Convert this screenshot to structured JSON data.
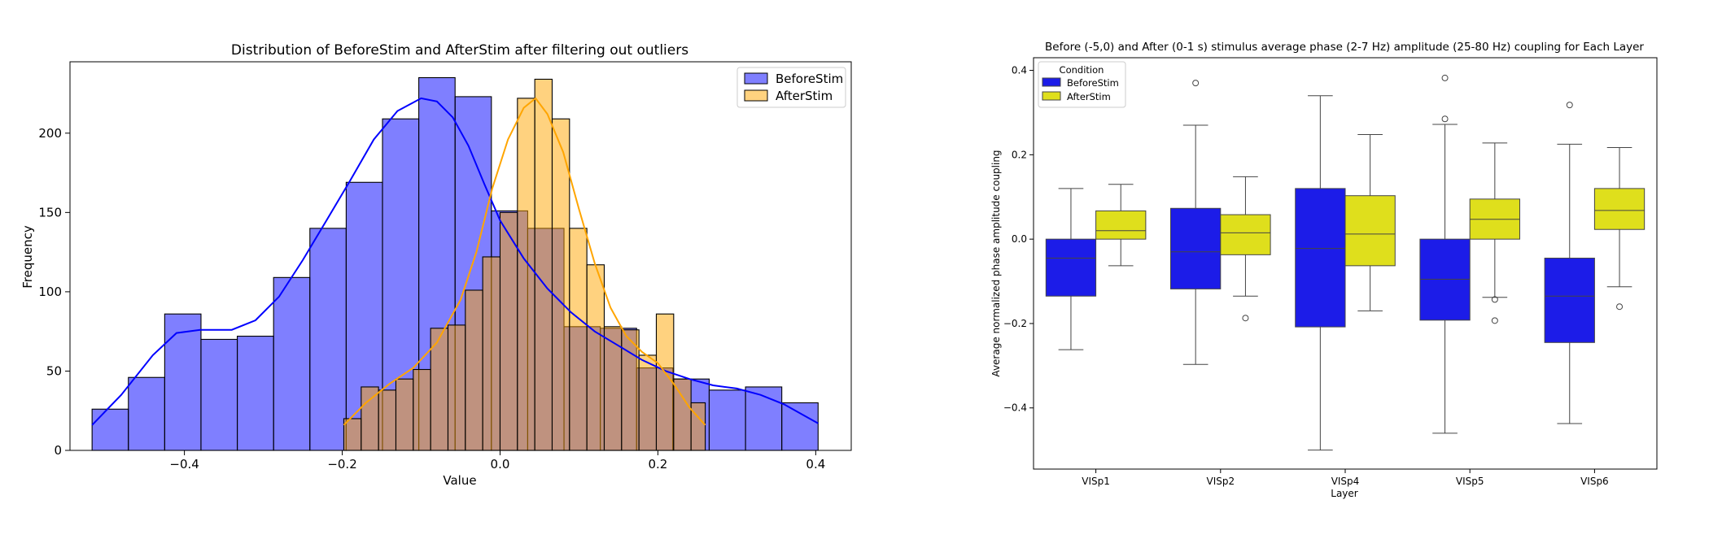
{
  "chart_data": [
    {
      "type": "histogram",
      "title": "Distribution of BeforeStim and AfterStim  after filtering out outliers",
      "xlabel": "Value",
      "ylabel": "Frequency",
      "xlim": [
        -0.545,
        0.445
      ],
      "ylim": [
        0,
        245
      ],
      "xticks": [
        -0.4,
        -0.2,
        0.0,
        0.2,
        0.4
      ],
      "xtick_labels": [
        "−0.4",
        "−0.2",
        "0.0",
        "0.2",
        "0.4"
      ],
      "yticks": [
        0,
        50,
        100,
        150,
        200
      ],
      "yticks_labels": [
        "0",
        "50",
        "100",
        "150",
        "200"
      ],
      "legend_position": "top-right",
      "series": [
        {
          "name": "BeforeStim",
          "color": "#0000ff",
          "bins": [
            {
              "x0": -0.517,
              "x1": -0.471,
              "count": 26
            },
            {
              "x0": -0.471,
              "x1": -0.425,
              "count": 46
            },
            {
              "x0": -0.425,
              "x1": -0.379,
              "count": 86
            },
            {
              "x0": -0.379,
              "x1": -0.333,
              "count": 70
            },
            {
              "x0": -0.333,
              "x1": -0.287,
              "count": 72
            },
            {
              "x0": -0.287,
              "x1": -0.241,
              "count": 109
            },
            {
              "x0": -0.241,
              "x1": -0.195,
              "count": 140
            },
            {
              "x0": -0.195,
              "x1": -0.149,
              "count": 169
            },
            {
              "x0": -0.149,
              "x1": -0.103,
              "count": 209
            },
            {
              "x0": -0.103,
              "x1": -0.057,
              "count": 235
            },
            {
              "x0": -0.057,
              "x1": -0.011,
              "count": 223
            },
            {
              "x0": -0.011,
              "x1": 0.035,
              "count": 151
            },
            {
              "x0": 0.035,
              "x1": 0.081,
              "count": 140
            },
            {
              "x0": 0.081,
              "x1": 0.127,
              "count": 78
            },
            {
              "x0": 0.127,
              "x1": 0.173,
              "count": 77
            },
            {
              "x0": 0.173,
              "x1": 0.219,
              "count": 52
            },
            {
              "x0": 0.219,
              "x1": 0.265,
              "count": 45
            },
            {
              "x0": 0.265,
              "x1": 0.311,
              "count": 38
            },
            {
              "x0": 0.311,
              "x1": 0.357,
              "count": 40
            },
            {
              "x0": 0.357,
              "x1": 0.403,
              "count": 30
            }
          ],
          "kde": [
            [
              -0.517,
              16
            ],
            [
              -0.48,
              35
            ],
            [
              -0.44,
              60
            ],
            [
              -0.41,
              74
            ],
            [
              -0.38,
              76
            ],
            [
              -0.34,
              76
            ],
            [
              -0.31,
              82
            ],
            [
              -0.28,
              97
            ],
            [
              -0.25,
              120
            ],
            [
              -0.22,
              145
            ],
            [
              -0.19,
              170
            ],
            [
              -0.16,
              196
            ],
            [
              -0.13,
              214
            ],
            [
              -0.1,
              222
            ],
            [
              -0.08,
              220
            ],
            [
              -0.06,
              210
            ],
            [
              -0.04,
              192
            ],
            [
              -0.02,
              168
            ],
            [
              0.0,
              145
            ],
            [
              0.03,
              121
            ],
            [
              0.06,
              102
            ],
            [
              0.09,
              87
            ],
            [
              0.12,
              75
            ],
            [
              0.15,
              66
            ],
            [
              0.18,
              57
            ],
            [
              0.21,
              50
            ],
            [
              0.24,
              45
            ],
            [
              0.27,
              41
            ],
            [
              0.3,
              39
            ],
            [
              0.33,
              35
            ],
            [
              0.36,
              29
            ],
            [
              0.403,
              17
            ]
          ]
        },
        {
          "name": "AfterStim",
          "color": "#ffa500",
          "bins": [
            {
              "x0": -0.198,
              "x1": -0.176,
              "count": 20
            },
            {
              "x0": -0.176,
              "x1": -0.154,
              "count": 40
            },
            {
              "x0": -0.154,
              "x1": -0.132,
              "count": 38
            },
            {
              "x0": -0.132,
              "x1": -0.11,
              "count": 45
            },
            {
              "x0": -0.11,
              "x1": -0.088,
              "count": 51
            },
            {
              "x0": -0.088,
              "x1": -0.066,
              "count": 77
            },
            {
              "x0": -0.066,
              "x1": -0.044,
              "count": 79
            },
            {
              "x0": -0.044,
              "x1": -0.022,
              "count": 101
            },
            {
              "x0": -0.022,
              "x1": 0.0,
              "count": 122
            },
            {
              "x0": 0.0,
              "x1": 0.022,
              "count": 150
            },
            {
              "x0": 0.022,
              "x1": 0.044,
              "count": 222
            },
            {
              "x0": 0.044,
              "x1": 0.066,
              "count": 234
            },
            {
              "x0": 0.066,
              "x1": 0.088,
              "count": 209
            },
            {
              "x0": 0.088,
              "x1": 0.11,
              "count": 140
            },
            {
              "x0": 0.11,
              "x1": 0.132,
              "count": 117
            },
            {
              "x0": 0.132,
              "x1": 0.154,
              "count": 78
            },
            {
              "x0": 0.154,
              "x1": 0.176,
              "count": 76
            },
            {
              "x0": 0.176,
              "x1": 0.198,
              "count": 60
            },
            {
              "x0": 0.198,
              "x1": 0.22,
              "count": 86
            },
            {
              "x0": 0.22,
              "x1": 0.242,
              "count": 45
            },
            {
              "x0": 0.242,
              "x1": 0.26,
              "count": 30
            }
          ],
          "kde": [
            [
              -0.198,
              16
            ],
            [
              -0.17,
              30
            ],
            [
              -0.14,
              42
            ],
            [
              -0.11,
              52
            ],
            [
              -0.08,
              68
            ],
            [
              -0.05,
              95
            ],
            [
              -0.03,
              125
            ],
            [
              -0.01,
              165
            ],
            [
              0.01,
              196
            ],
            [
              0.03,
              216
            ],
            [
              0.045,
              222
            ],
            [
              0.06,
              212
            ],
            [
              0.08,
              188
            ],
            [
              0.1,
              152
            ],
            [
              0.12,
              118
            ],
            [
              0.14,
              90
            ],
            [
              0.16,
              72
            ],
            [
              0.18,
              62
            ],
            [
              0.2,
              55
            ],
            [
              0.22,
              42
            ],
            [
              0.24,
              27
            ],
            [
              0.26,
              16
            ]
          ]
        }
      ]
    },
    {
      "type": "box",
      "title": "Before (-5,0) and After (0-1 s) stimulus average phase (2-7 Hz) amplitude (25-80 Hz) coupling for Each Layer",
      "xlabel": "Layer",
      "ylabel": "Average normalized phase amplitude coupling",
      "ylim": [
        -0.545,
        0.43
      ],
      "yticks": [
        -0.4,
        -0.2,
        0.0,
        0.2,
        0.4
      ],
      "ytick_labels": [
        "−0.4",
        "−0.2",
        "0.0",
        "0.2",
        "0.4"
      ],
      "categories": [
        "VISp1",
        "VISp2",
        "VISp4",
        "VISp5",
        "VISp6"
      ],
      "legend_title": "Condition",
      "legend_position": "top-left",
      "series": [
        {
          "name": "BeforeStim",
          "color": "#1c1ce8",
          "boxes": [
            {
              "whisker_low": -0.262,
              "q1": -0.135,
              "median": -0.045,
              "q3": 0.0,
              "whisker_high": 0.12,
              "outliers": []
            },
            {
              "whisker_low": -0.297,
              "q1": -0.118,
              "median": -0.03,
              "q3": 0.073,
              "whisker_high": 0.27,
              "outliers": [
                0.37
              ]
            },
            {
              "whisker_low": -0.5,
              "q1": -0.208,
              "median": -0.022,
              "q3": 0.12,
              "whisker_high": 0.34,
              "outliers": []
            },
            {
              "whisker_low": -0.46,
              "q1": -0.192,
              "median": -0.095,
              "q3": 0.0,
              "whisker_high": 0.272,
              "outliers": [
                0.285,
                0.382
              ]
            },
            {
              "whisker_low": -0.437,
              "q1": -0.245,
              "median": -0.135,
              "q3": -0.045,
              "whisker_high": 0.225,
              "outliers": [
                0.318
              ]
            }
          ]
        },
        {
          "name": "AfterStim",
          "color": "#dfdf1c",
          "boxes": [
            {
              "whisker_low": -0.063,
              "q1": 0.0,
              "median": 0.02,
              "q3": 0.067,
              "whisker_high": 0.13,
              "outliers": []
            },
            {
              "whisker_low": -0.135,
              "q1": -0.037,
              "median": 0.015,
              "q3": 0.058,
              "whisker_high": 0.148,
              "outliers": [
                -0.187
              ]
            },
            {
              "whisker_low": -0.17,
              "q1": -0.063,
              "median": 0.012,
              "q3": 0.103,
              "whisker_high": 0.248,
              "outliers": []
            },
            {
              "whisker_low": -0.138,
              "q1": 0.0,
              "median": 0.047,
              "q3": 0.095,
              "whisker_high": 0.228,
              "outliers": [
                -0.143,
                -0.193
              ]
            },
            {
              "whisker_low": -0.113,
              "q1": 0.023,
              "median": 0.068,
              "q3": 0.12,
              "whisker_high": 0.217,
              "outliers": [
                -0.16
              ]
            }
          ]
        }
      ]
    }
  ]
}
